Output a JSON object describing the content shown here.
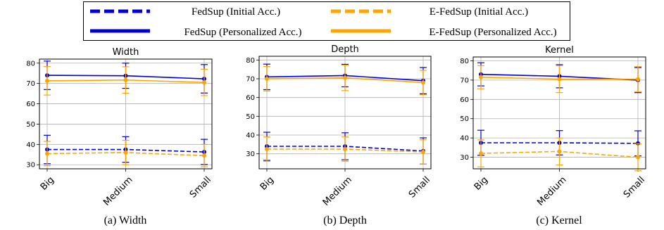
{
  "legend": {
    "entries": [
      {
        "label": "FedSup (Initial Acc.)",
        "color": "#0000dd",
        "style": "dashed"
      },
      {
        "label": "FedSup (Personalized Acc.)",
        "color": "#0000dd",
        "style": "solid"
      },
      {
        "label": "E-FedSup (Initial Acc.)",
        "color": "#ffa500",
        "style": "dashed"
      },
      {
        "label": "E-FedSup (Personalized Acc.)",
        "color": "#ffa500",
        "style": "solid"
      }
    ]
  },
  "colors": {
    "fedsup": "#0000dd",
    "efedsup": "#ffa500",
    "grid": "#b0b0b0"
  },
  "chart_data": [
    {
      "type": "line",
      "title": "Width",
      "caption": "(a) Width",
      "categories": [
        "Big",
        "Medium",
        "Small"
      ],
      "ylim": [
        28,
        82
      ],
      "yticks": [
        30,
        40,
        50,
        60,
        70,
        80
      ],
      "grid": true,
      "series": [
        {
          "name": "FedSup (Initial Acc.)",
          "color": "#0000dd",
          "style": "dashed",
          "values": [
            37.5,
            37.5,
            36.3
          ],
          "err": [
            7.0,
            6.3,
            6.2
          ]
        },
        {
          "name": "FedSup (Personalized Acc.)",
          "color": "#0000dd",
          "style": "solid",
          "values": [
            74.0,
            73.8,
            72.3
          ],
          "err": [
            7.0,
            6.2,
            7.0
          ]
        },
        {
          "name": "E-FedSup (Initial Acc.)",
          "color": "#ffa500",
          "style": "dashed",
          "values": [
            35.5,
            36.0,
            34.5
          ],
          "err": [
            6.0,
            6.0,
            5.5
          ]
        },
        {
          "name": "E-FedSup (Personalized Acc.)",
          "color": "#ffa500",
          "style": "solid",
          "values": [
            71.3,
            71.7,
            70.5
          ],
          "err": [
            7.0,
            6.5,
            6.5
          ]
        }
      ]
    },
    {
      "type": "line",
      "title": "Depth",
      "caption": "(b) Depth",
      "categories": [
        "Big",
        "Medium",
        "Small"
      ],
      "ylim": [
        22,
        82
      ],
      "yticks": [
        30,
        40,
        50,
        60,
        70,
        80
      ],
      "grid": true,
      "series": [
        {
          "name": "FedSup (Initial Acc.)",
          "color": "#0000dd",
          "style": "dashed",
          "values": [
            34.0,
            34.0,
            31.5
          ],
          "err": [
            7.5,
            7.2,
            7.0
          ]
        },
        {
          "name": "FedSup (Personalized Acc.)",
          "color": "#0000dd",
          "style": "solid",
          "values": [
            71.0,
            71.7,
            69.0
          ],
          "err": [
            6.8,
            6.0,
            7.0
          ]
        },
        {
          "name": "E-FedSup (Initial Acc.)",
          "color": "#ffa500",
          "style": "dashed",
          "values": [
            32.5,
            32.5,
            31.0
          ],
          "err": [
            6.5,
            6.5,
            6.5
          ]
        },
        {
          "name": "E-FedSup (Personalized Acc.)",
          "color": "#ffa500",
          "style": "solid",
          "values": [
            70.0,
            70.5,
            68.0
          ],
          "err": [
            6.5,
            6.8,
            6.5
          ]
        }
      ]
    },
    {
      "type": "line",
      "title": "Kernel",
      "caption": "(c) Kernel",
      "categories": [
        "Big",
        "Medium",
        "Small"
      ],
      "ylim": [
        24,
        82
      ],
      "yticks": [
        30,
        40,
        50,
        60,
        70,
        80
      ],
      "grid": true,
      "series": [
        {
          "name": "FedSup (Initial Acc.)",
          "color": "#0000dd",
          "style": "dashed",
          "values": [
            37.5,
            37.5,
            37.2
          ],
          "err": [
            6.5,
            6.3,
            6.5
          ]
        },
        {
          "name": "FedSup (Personalized Acc.)",
          "color": "#0000dd",
          "style": "solid",
          "values": [
            73.0,
            72.0,
            70.0
          ],
          "err": [
            6.0,
            6.0,
            6.5
          ]
        },
        {
          "name": "E-FedSup (Initial Acc.)",
          "color": "#ffa500",
          "style": "dashed",
          "values": [
            32.0,
            33.0,
            30.0
          ],
          "err": [
            7.0,
            7.0,
            7.0
          ]
        },
        {
          "name": "E-FedSup (Personalized Acc.)",
          "color": "#ffa500",
          "style": "solid",
          "values": [
            71.5,
            70.5,
            70.5
          ],
          "err": [
            6.0,
            7.0,
            6.5
          ]
        }
      ]
    }
  ]
}
